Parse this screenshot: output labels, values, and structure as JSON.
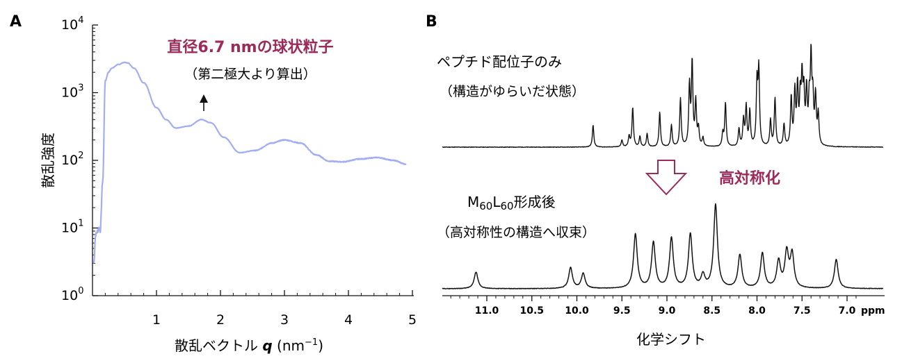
{
  "panel_a": {
    "letter": "A",
    "annotation_title": "直径6.7 nmの球状粒子",
    "annotation_sub": "（第二極大より算出）",
    "ylabel": "散乱強度",
    "xlabel_prefix": "散乱ベクトル ",
    "xlabel_var": "q",
    "xlabel_unit": " (nm",
    "xlabel_exp": "−1",
    "xlabel_close": ")",
    "ytick_base": "10",
    "yticks": [
      {
        "exp": "0",
        "value": 1
      },
      {
        "exp": "1",
        "value": 10
      },
      {
        "exp": "2",
        "value": 100
      },
      {
        "exp": "3",
        "value": 1000
      },
      {
        "exp": "4",
        "value": 10000
      }
    ],
    "xticks": [
      "1",
      "2",
      "3",
      "4",
      "5"
    ]
  },
  "panel_b": {
    "letter": "B",
    "top_label": "ペプチド配位子のみ",
    "top_sub": "（構造がゆらいだ状態）",
    "bottom_label_M": "M",
    "bottom_label_sub1": "60",
    "bottom_label_L": "L",
    "bottom_label_sub2": "60",
    "bottom_label_rest": "形成後",
    "bottom_sub": "（高対称性の構造へ収束）",
    "arrow_label": "高対称化",
    "xlabel": "化学シフト",
    "unit": "ppm",
    "xticks": [
      "11.0",
      "10.5",
      "10.0",
      "9.5",
      "9.0",
      "8.5",
      "8.0",
      "7.5",
      "7.0"
    ]
  },
  "colors": {
    "accent": "#9c2a5a",
    "saxs_curve": "#a3aef2",
    "nmr_trace": "#111111"
  },
  "chart_data": [
    {
      "type": "line",
      "title": "",
      "xlabel": "散乱ベクトル q (nm−1)",
      "ylabel": "散乱強度",
      "yscale": "log",
      "xlim": [
        0,
        5
      ],
      "ylim": [
        1,
        10000
      ],
      "grid": false,
      "series": [
        {
          "x": [
            0.02,
            0.05,
            0.08,
            0.1,
            0.12,
            0.16,
            0.2,
            0.25,
            0.3,
            0.4,
            0.5,
            0.55,
            0.65,
            0.8,
            1.0,
            1.15,
            1.3,
            1.5,
            1.7,
            1.85,
            2.05,
            2.3,
            2.55,
            2.8,
            3.0,
            3.25,
            3.5,
            3.7,
            3.9,
            4.2,
            4.45,
            4.7,
            4.9
          ],
          "y": [
            3,
            8,
            9,
            10,
            9,
            50,
            1500,
            2000,
            2300,
            2600,
            2800,
            2750,
            2300,
            1400,
            600,
            400,
            300,
            320,
            400,
            360,
            220,
            130,
            140,
            180,
            200,
            180,
            120,
            97,
            95,
            105,
            110,
            100,
            88
          ]
        }
      ],
      "annotations": [
        "直径6.7 nmの球状粒子",
        "（第二極大より算出）"
      ]
    },
    {
      "type": "line",
      "title": "",
      "xlabel": "化学シフト",
      "xunit": "ppm",
      "x_reversed": true,
      "xlim": [
        11.45,
        6.8
      ],
      "series": [
        {
          "name": "ペプチド配位子のみ",
          "peaks_ppm": [
            9.82,
            9.5,
            9.42,
            9.38,
            9.3,
            9.22,
            9.08,
            8.95,
            8.85,
            8.75,
            8.72,
            8.68,
            8.65,
            8.6,
            8.38,
            8.35,
            8.2,
            8.15,
            8.12,
            8.08,
            8.0,
            7.98,
            7.85,
            7.8,
            7.7,
            7.62,
            7.58,
            7.55,
            7.52,
            7.5,
            7.48,
            7.45,
            7.42,
            7.4,
            7.38,
            7.35,
            7.32
          ],
          "heights": [
            0.25,
            0.08,
            0.12,
            0.45,
            0.12,
            0.15,
            0.4,
            0.25,
            0.55,
            0.68,
            0.95,
            0.5,
            0.2,
            0.1,
            0.15,
            0.5,
            0.2,
            0.3,
            0.45,
            0.4,
            0.7,
            0.85,
            0.3,
            0.55,
            0.25,
            0.55,
            0.6,
            0.65,
            0.5,
            0.7,
            0.55,
            0.6,
            0.45,
            0.95,
            0.5,
            0.55,
            0.35
          ]
        },
        {
          "name": "M60L60形成後",
          "peaks_ppm": [
            11.12,
            10.07,
            9.93,
            9.35,
            9.15,
            8.95,
            8.74,
            8.6,
            8.46,
            8.19,
            7.94,
            7.76,
            7.67,
            7.61,
            7.12
          ],
          "heights": [
            0.2,
            0.25,
            0.18,
            0.65,
            0.55,
            0.6,
            0.65,
            0.15,
            1.0,
            0.4,
            0.42,
            0.32,
            0.42,
            0.4,
            0.35
          ]
        }
      ]
    }
  ]
}
